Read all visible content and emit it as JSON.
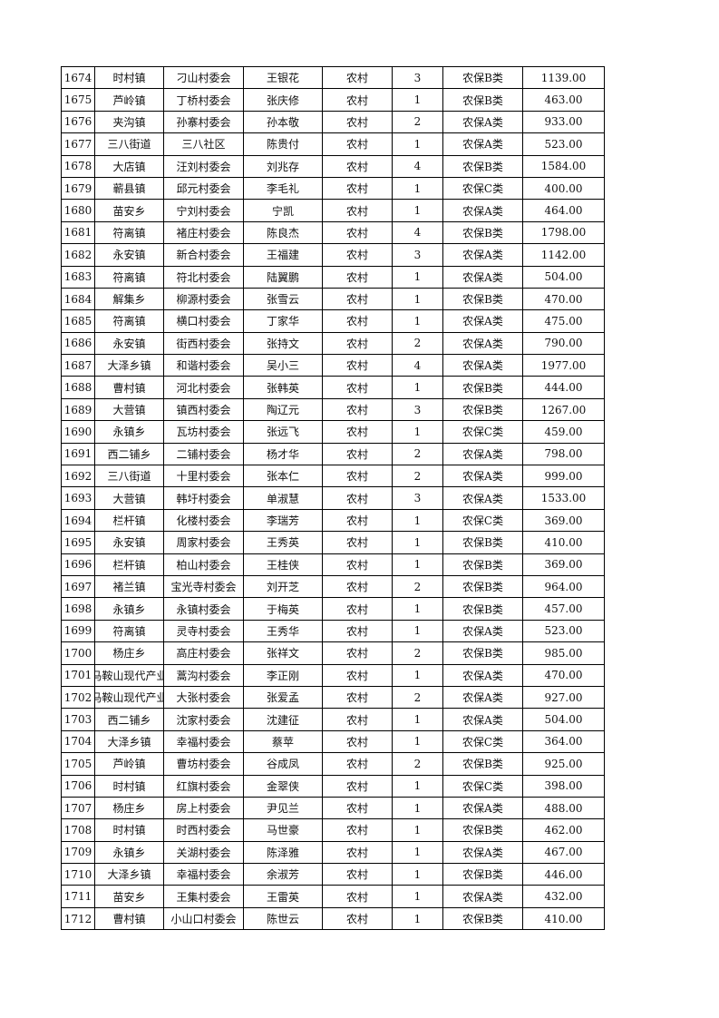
{
  "rows": [
    [
      "1674",
      "时村镇",
      "刁山村委会",
      "王银花",
      "农村",
      "3",
      "农保B类",
      "1139.00"
    ],
    [
      "1675",
      "芦岭镇",
      "丁桥村委会",
      "张庆修",
      "农村",
      "1",
      "农保B类",
      "463.00"
    ],
    [
      "1676",
      "夹沟镇",
      "孙寨村委会",
      "孙本敬",
      "农村",
      "2",
      "农保A类",
      "933.00"
    ],
    [
      "1677",
      "三八街道",
      "三八社区",
      "陈贵付",
      "农村",
      "1",
      "农保A类",
      "523.00"
    ],
    [
      "1678",
      "大店镇",
      "汪刘村委会",
      "刘兆存",
      "农村",
      "4",
      "农保B类",
      "1584.00"
    ],
    [
      "1679",
      "蕲县镇",
      "邱元村委会",
      "李毛礼",
      "农村",
      "1",
      "农保C类",
      "400.00"
    ],
    [
      "1680",
      "苗安乡",
      "宁刘村委会",
      "宁凯",
      "农村",
      "1",
      "农保A类",
      "464.00"
    ],
    [
      "1681",
      "符离镇",
      "褚庄村委会",
      "陈良杰",
      "农村",
      "4",
      "农保B类",
      "1798.00"
    ],
    [
      "1682",
      "永安镇",
      "新合村委会",
      "王福建",
      "农村",
      "3",
      "农保A类",
      "1142.00"
    ],
    [
      "1683",
      "符离镇",
      "符北村委会",
      "陆翼鹏",
      "农村",
      "1",
      "农保A类",
      "504.00"
    ],
    [
      "1684",
      "解集乡",
      "柳源村委会",
      "张雪云",
      "农村",
      "1",
      "农保B类",
      "470.00"
    ],
    [
      "1685",
      "符离镇",
      "横口村委会",
      "丁家华",
      "农村",
      "1",
      "农保A类",
      "475.00"
    ],
    [
      "1686",
      "永安镇",
      "街西村委会",
      "张持文",
      "农村",
      "2",
      "农保A类",
      "790.00"
    ],
    [
      "1687",
      "大泽乡镇",
      "和谐村委会",
      "吴小三",
      "农村",
      "4",
      "农保A类",
      "1977.00"
    ],
    [
      "1688",
      "曹村镇",
      "河北村委会",
      "张韩英",
      "农村",
      "1",
      "农保B类",
      "444.00"
    ],
    [
      "1689",
      "大营镇",
      "镇西村委会",
      "陶辽元",
      "农村",
      "3",
      "农保B类",
      "1267.00"
    ],
    [
      "1690",
      "永镇乡",
      "瓦坊村委会",
      "张远飞",
      "农村",
      "1",
      "农保C类",
      "459.00"
    ],
    [
      "1691",
      "西二铺乡",
      "二铺村委会",
      "杨才华",
      "农村",
      "2",
      "农保A类",
      "798.00"
    ],
    [
      "1692",
      "三八街道",
      "十里村委会",
      "张本仁",
      "农村",
      "2",
      "农保A类",
      "999.00"
    ],
    [
      "1693",
      "大营镇",
      "韩圩村委会",
      "单淑慧",
      "农村",
      "3",
      "农保A类",
      "1533.00"
    ],
    [
      "1694",
      "栏杆镇",
      "化楼村委会",
      "李瑞芳",
      "农村",
      "1",
      "农保C类",
      "369.00"
    ],
    [
      "1695",
      "永安镇",
      "周家村委会",
      "王秀英",
      "农村",
      "1",
      "农保B类",
      "410.00"
    ],
    [
      "1696",
      "栏杆镇",
      "柏山村委会",
      "王桂侠",
      "农村",
      "1",
      "农保B类",
      "369.00"
    ],
    [
      "1697",
      "褚兰镇",
      "宝光寺村委会",
      "刘开芝",
      "农村",
      "2",
      "农保B类",
      "964.00"
    ],
    [
      "1698",
      "永镇乡",
      "永镇村委会",
      "于梅英",
      "农村",
      "1",
      "农保B类",
      "457.00"
    ],
    [
      "1699",
      "符离镇",
      "灵寺村委会",
      "王秀华",
      "农村",
      "1",
      "农保A类",
      "523.00"
    ],
    [
      "1700",
      "杨庄乡",
      "高庄村委会",
      "张祥文",
      "农村",
      "2",
      "农保B类",
      "985.00"
    ],
    [
      "1701",
      "马鞍山现代产业",
      "蒿沟村委会",
      "李正刚",
      "农村",
      "1",
      "农保A类",
      "470.00"
    ],
    [
      "1702",
      "马鞍山现代产业",
      "大张村委会",
      "张爱孟",
      "农村",
      "2",
      "农保A类",
      "927.00"
    ],
    [
      "1703",
      "西二铺乡",
      "沈家村委会",
      "沈建征",
      "农村",
      "1",
      "农保A类",
      "504.00"
    ],
    [
      "1704",
      "大泽乡镇",
      "幸福村委会",
      "蔡苹",
      "农村",
      "1",
      "农保C类",
      "364.00"
    ],
    [
      "1705",
      "芦岭镇",
      "曹坊村委会",
      "谷成凤",
      "农村",
      "2",
      "农保B类",
      "925.00"
    ],
    [
      "1706",
      "时村镇",
      "红旗村委会",
      "金翠侠",
      "农村",
      "1",
      "农保C类",
      "398.00"
    ],
    [
      "1707",
      "杨庄乡",
      "房上村委会",
      "尹见兰",
      "农村",
      "1",
      "农保A类",
      "488.00"
    ],
    [
      "1708",
      "时村镇",
      "时西村委会",
      "马世豪",
      "农村",
      "1",
      "农保B类",
      "462.00"
    ],
    [
      "1709",
      "永镇乡",
      "关湖村委会",
      "陈泽雅",
      "农村",
      "1",
      "农保A类",
      "467.00"
    ],
    [
      "1710",
      "大泽乡镇",
      "幸福村委会",
      "余淑芳",
      "农村",
      "1",
      "农保B类",
      "446.00"
    ],
    [
      "1711",
      "苗安乡",
      "王集村委会",
      "王雷英",
      "农村",
      "1",
      "农保A类",
      "432.00"
    ],
    [
      "1712",
      "曹村镇",
      "小山口村委会",
      "陈世云",
      "农村",
      "1",
      "农保B类",
      "410.00"
    ]
  ]
}
